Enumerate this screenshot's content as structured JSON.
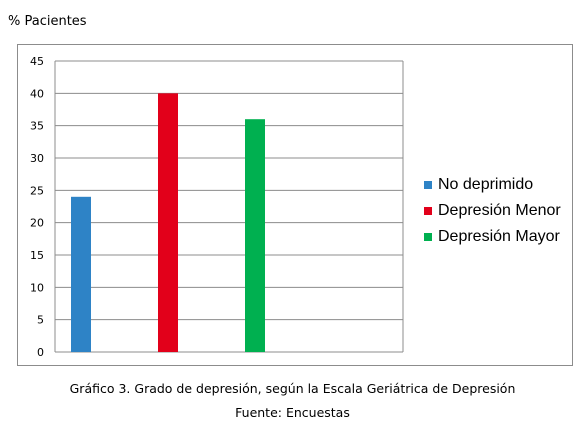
{
  "chart_data": {
    "type": "bar",
    "ylabel": "% Pacientes",
    "ylim": [
      0,
      45
    ],
    "yticks": [
      0,
      5,
      10,
      15,
      20,
      25,
      30,
      35,
      40,
      45
    ],
    "grid": true,
    "legend_position": "right",
    "categories": [
      "No deprimido",
      "Depresión Menor",
      "Depresión Mayor"
    ],
    "values": [
      24,
      40,
      36
    ],
    "colors": [
      "#2e83c6",
      "#e2001a",
      "#00b050"
    ],
    "caption": "Gráfico 3. Grado de depresión, según la Escala Geriátrica de Depresión",
    "source": "Fuente: Encuestas"
  }
}
